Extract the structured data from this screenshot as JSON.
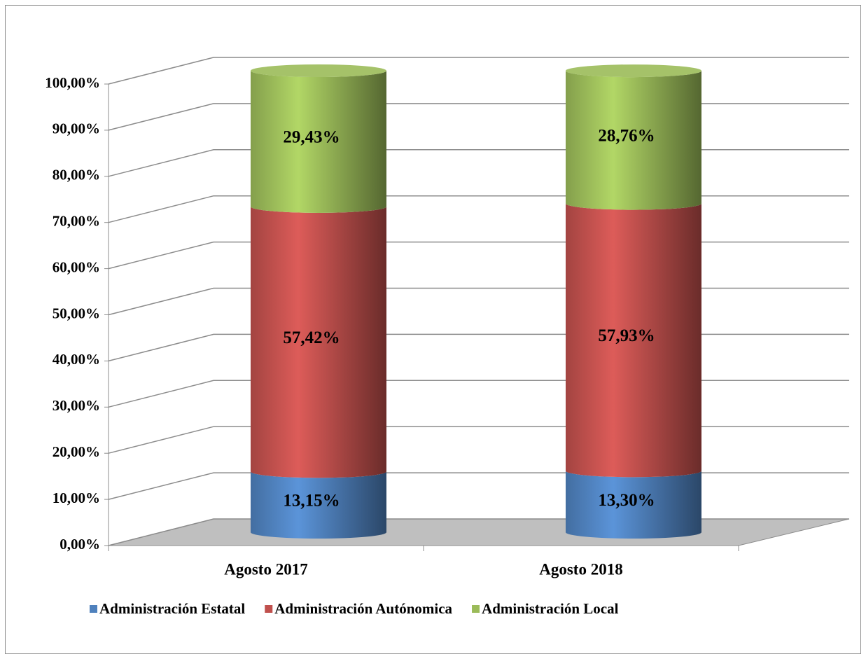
{
  "chart_data": {
    "type": "stacked-cylinder",
    "categories": [
      "Agosto 2017",
      "Agosto 2018"
    ],
    "series": [
      {
        "name": "Administración Estatal",
        "color": "#4f81bd",
        "values": [
          13.15,
          13.3
        ],
        "value_labels": [
          "13,15%",
          "13,30%"
        ]
      },
      {
        "name": "Administración Autónomica",
        "color": "#c0504d",
        "values": [
          57.42,
          57.93
        ],
        "value_labels": [
          "57,42%",
          "57,93%"
        ]
      },
      {
        "name": "Administración Local",
        "color": "#9bbb59",
        "values": [
          29.43,
          28.76
        ],
        "value_labels": [
          "29,43%",
          "28,76%"
        ]
      }
    ],
    "ylim": [
      0,
      100
    ],
    "yticks": [
      {
        "value": 0,
        "label": "0,00%"
      },
      {
        "value": 10,
        "label": "10,00%"
      },
      {
        "value": 20,
        "label": "20,00%"
      },
      {
        "value": 30,
        "label": "30,00%"
      },
      {
        "value": 40,
        "label": "40,00%"
      },
      {
        "value": 50,
        "label": "50,00%"
      },
      {
        "value": 60,
        "label": "60,00%"
      },
      {
        "value": 70,
        "label": "70,00%"
      },
      {
        "value": 80,
        "label": "80,00%"
      },
      {
        "value": 90,
        "label": "90,00%"
      },
      {
        "value": 100,
        "label": "100,00%"
      }
    ],
    "grid": true,
    "legend": "bottom"
  }
}
